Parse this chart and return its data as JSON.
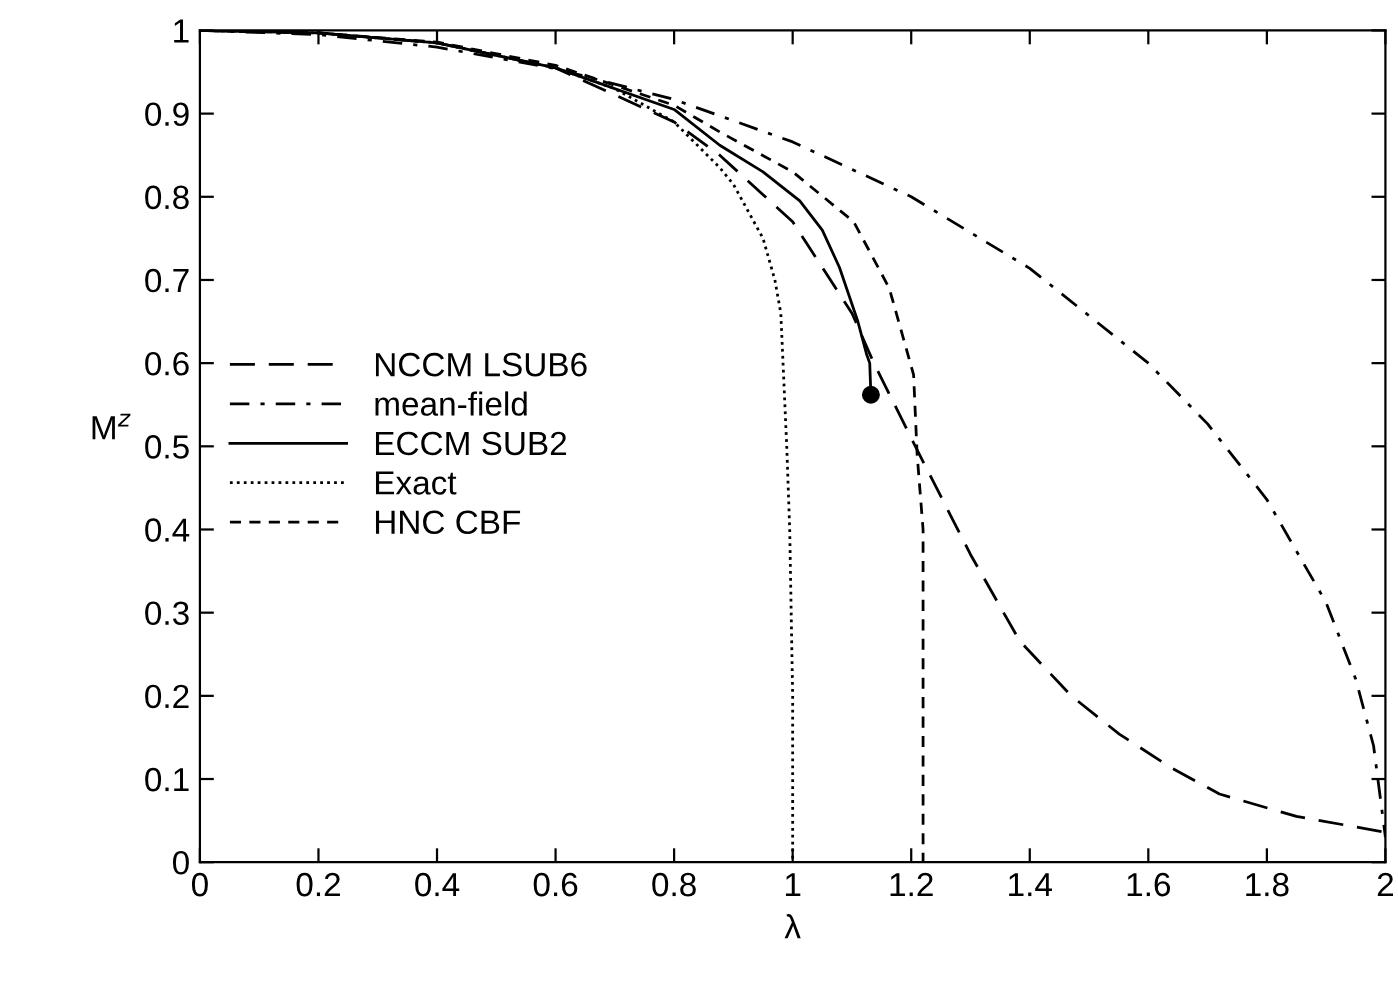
{
  "chart_data": {
    "type": "line",
    "xlabel": "λ",
    "ylabel": "M$^{z}$",
    "xlim": [
      0,
      2
    ],
    "ylim": [
      0,
      1
    ],
    "xticks": [
      0,
      0.2,
      0.4,
      0.6,
      0.8,
      1,
      1.2,
      1.4,
      1.6,
      1.8,
      2
    ],
    "yticks": [
      0,
      0.1,
      0.2,
      0.3,
      0.4,
      0.5,
      0.6,
      0.7,
      0.8,
      0.9,
      1
    ],
    "grid": false,
    "legend": "left",
    "marker": "none",
    "series": [
      {
        "name": "NCCM LSUB6",
        "color": "#000000",
        "line_style": "longdash",
        "x": [
          0,
          0.2,
          0.4,
          0.6,
          0.8,
          0.877,
          1.0,
          1.1,
          1.137,
          1.214,
          1.3,
          1.383,
          1.47,
          1.551,
          1.64,
          1.72,
          1.85,
          2
        ],
        "values": [
          1,
          0.997,
          0.985,
          0.955,
          0.89,
          0.85,
          0.77,
          0.66,
          0.6,
          0.49,
          0.37,
          0.266,
          0.2,
          0.154,
          0.113,
          0.082,
          0.055,
          0.036
        ]
      },
      {
        "name": "mean-field",
        "color": "#000000",
        "line_style": "dashdot",
        "x": [
          0,
          0.2,
          0.4,
          0.6,
          0.8,
          1.0,
          1.2,
          1.4,
          1.6,
          1.7,
          1.8,
          1.9,
          1.95,
          1.98,
          2
        ],
        "values": [
          1,
          0.995,
          0.98,
          0.954,
          0.917,
          0.866,
          0.8,
          0.714,
          0.6,
          0.527,
          0.436,
          0.312,
          0.22,
          0.14,
          0.03
        ]
      },
      {
        "name": "ECCM SUB2",
        "color": "#000000",
        "line_style": "solid",
        "x": [
          0,
          0.2,
          0.4,
          0.6,
          0.8,
          0.877,
          0.95,
          1.012,
          1.05,
          1.079,
          1.11,
          1.125,
          1.13,
          1.132
        ],
        "values": [
          1,
          0.997,
          0.985,
          0.955,
          0.905,
          0.862,
          0.83,
          0.795,
          0.76,
          0.715,
          0.65,
          0.61,
          0.6,
          0.562
        ]
      },
      {
        "name": "Exact",
        "color": "#000000",
        "line_style": "dotted",
        "x": [
          0,
          0.2,
          0.4,
          0.6,
          0.7,
          0.8,
          0.877,
          0.9,
          0.95,
          0.97,
          0.98,
          0.99,
          0.995,
          1.0,
          1.0
        ],
        "values": [
          1,
          0.997,
          0.985,
          0.955,
          0.93,
          0.89,
          0.835,
          0.815,
          0.75,
          0.7,
          0.66,
          0.5,
          0.4,
          0.2,
          0
        ]
      },
      {
        "name": "HNC CBF",
        "color": "#000000",
        "line_style": "dashed",
        "x": [
          0,
          0.2,
          0.4,
          0.6,
          0.8,
          0.877,
          1.0,
          1.103,
          1.163,
          1.204,
          1.21,
          1.22,
          1.22
        ],
        "values": [
          1,
          0.997,
          0.986,
          0.958,
          0.91,
          0.878,
          0.83,
          0.77,
          0.69,
          0.586,
          0.49,
          0.4,
          0
        ]
      },
      {
        "type": "scatter",
        "color": "#000000",
        "marker": "circle",
        "x": [
          1.132
        ],
        "values": [
          0.562
        ]
      }
    ]
  }
}
